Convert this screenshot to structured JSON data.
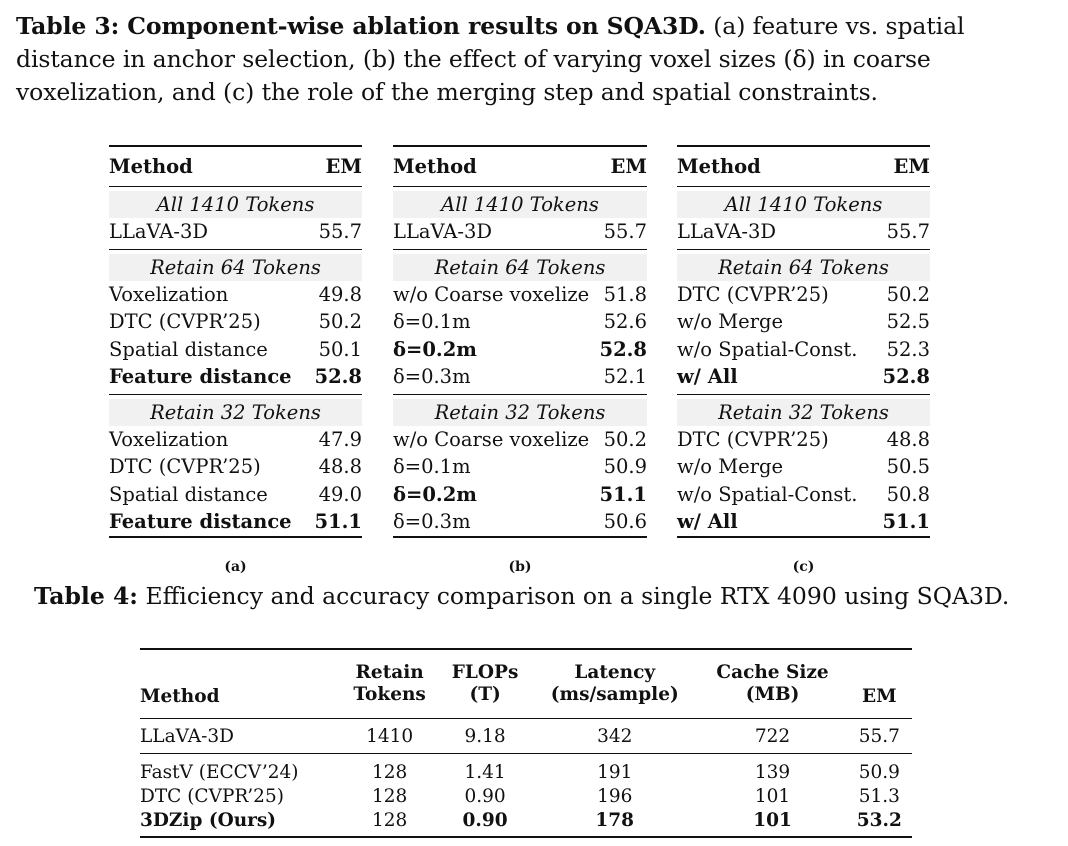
{
  "table3": {
    "caption_label": "Table 3: Component-wise ablation results on SQA3D.",
    "caption_text": " (a) feature vs. spatial distance in anchor selection, (b) the effect of varying voxel sizes (δ) in coarse voxelization, and (c) the role of the merging step and spatial constraints.",
    "header_method": "Method",
    "header_em": "EM",
    "subtables": [
      {
        "label": "(a)",
        "groups": [
          {
            "title": "All 1410 Tokens",
            "rows": [
              {
                "method": "LLaVA-3D",
                "em": "55.7",
                "bold": false
              }
            ]
          },
          {
            "title": "Retain 64 Tokens",
            "rows": [
              {
                "method": "Voxelization",
                "em": "49.8",
                "bold": false
              },
              {
                "method": "DTC (CVPR’25)",
                "em": "50.2",
                "bold": false
              },
              {
                "method": "Spatial distance",
                "em": "50.1",
                "bold": false
              },
              {
                "method": "Feature distance",
                "em": "52.8",
                "bold": true
              }
            ]
          },
          {
            "title": "Retain 32 Tokens",
            "rows": [
              {
                "method": "Voxelization",
                "em": "47.9",
                "bold": false
              },
              {
                "method": "DTC (CVPR’25)",
                "em": "48.8",
                "bold": false
              },
              {
                "method": "Spatial distance",
                "em": "49.0",
                "bold": false
              },
              {
                "method": "Feature distance",
                "em": "51.1",
                "bold": true
              }
            ]
          }
        ]
      },
      {
        "label": "(b)",
        "groups": [
          {
            "title": "All 1410 Tokens",
            "rows": [
              {
                "method": "LLaVA-3D",
                "em": "55.7",
                "bold": false
              }
            ]
          },
          {
            "title": "Retain 64 Tokens",
            "rows": [
              {
                "method": "w/o Coarse voxelize",
                "em": "51.8",
                "bold": false
              },
              {
                "method": "δ=0.1m",
                "em": "52.6",
                "bold": false
              },
              {
                "method": "δ=0.2m",
                "em": "52.8",
                "bold": true
              },
              {
                "method": "δ=0.3m",
                "em": "52.1",
                "bold": false
              }
            ]
          },
          {
            "title": "Retain 32 Tokens",
            "rows": [
              {
                "method": "w/o Coarse voxelize",
                "em": "50.2",
                "bold": false
              },
              {
                "method": "δ=0.1m",
                "em": "50.9",
                "bold": false
              },
              {
                "method": "δ=0.2m",
                "em": "51.1",
                "bold": true
              },
              {
                "method": "δ=0.3m",
                "em": "50.6",
                "bold": false
              }
            ]
          }
        ]
      },
      {
        "label": "(c)",
        "groups": [
          {
            "title": "All 1410 Tokens",
            "rows": [
              {
                "method": "LLaVA-3D",
                "em": "55.7",
                "bold": false
              }
            ]
          },
          {
            "title": "Retain 64 Tokens",
            "rows": [
              {
                "method": "DTC (CVPR’25)",
                "em": "50.2",
                "bold": false
              },
              {
                "method": "w/o Merge",
                "em": "52.5",
                "bold": false
              },
              {
                "method": "w/o Spatial-Const.",
                "em": "52.3",
                "bold": false
              },
              {
                "method": "w/ All",
                "em": "52.8",
                "bold": true
              }
            ]
          },
          {
            "title": "Retain 32 Tokens",
            "rows": [
              {
                "method": "DTC (CVPR’25)",
                "em": "48.8",
                "bold": false
              },
              {
                "method": "w/o Merge",
                "em": "50.5",
                "bold": false
              },
              {
                "method": "w/o Spatial-Const.",
                "em": "50.8",
                "bold": false
              },
              {
                "method": "w/ All",
                "em": "51.1",
                "bold": true
              }
            ]
          }
        ]
      }
    ]
  },
  "table4": {
    "caption_label": "Table 4:",
    "caption_text": " Efficiency and accuracy comparison on a single RTX 4090 using SQA3D.",
    "headers": {
      "method": "Method",
      "retain_1": "Retain",
      "retain_2": "Tokens",
      "flops_1": "FLOPs",
      "flops_2": "(T)",
      "latency_1": "Latency",
      "latency_2": "(ms/sample)",
      "cache_1": "Cache Size",
      "cache_2": "(MB)",
      "em": "EM"
    },
    "rows": [
      {
        "method": "LLaVA-3D",
        "tokens": "1410",
        "flops": "9.18",
        "latency": "342",
        "cache": "722",
        "em": "55.7"
      },
      {
        "method": "FastV (ECCV’24)",
        "tokens": "128",
        "flops": "1.41",
        "latency": "191",
        "cache": "139",
        "em": "50.9"
      },
      {
        "method": "DTC (CVPR’25)",
        "tokens": "128",
        "flops": "0.90",
        "latency": "196",
        "cache": "101",
        "em": "51.3"
      },
      {
        "method": "3DZip (Ours)",
        "tokens": "128",
        "flops": "0.90",
        "latency": "178",
        "cache": "101",
        "em": "53.2"
      }
    ]
  }
}
